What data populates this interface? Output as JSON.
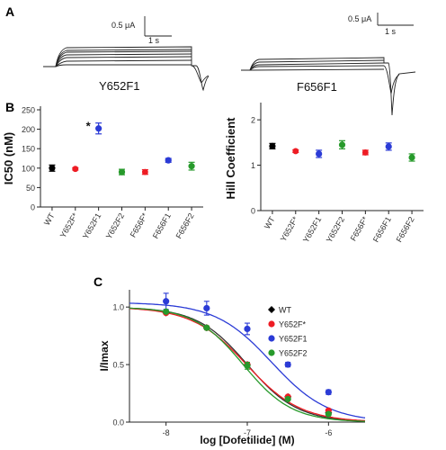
{
  "panels": {
    "A": {
      "letter": "A",
      "left": {
        "label": "Y652F1",
        "scale_current": "0.5 μA",
        "scale_time": "1 s"
      },
      "right": {
        "label": "F656F1",
        "scale_current": "0.5 μA",
        "scale_time": "1 s"
      }
    },
    "B": {
      "letter": "B"
    },
    "C": {
      "letter": "C"
    }
  },
  "colors": {
    "WT": "#000000",
    "Y652F*": "#ee1c24",
    "Y652F1": "#2b3bd6",
    "Y652F2": "#279a2b",
    "F656F*": "#ee1c24",
    "F656F1": "#2b3bd6",
    "F656F2": "#279a2b"
  },
  "chart_data": [
    {
      "type": "scatter",
      "panel": "B-left",
      "ylabel": "IC50 (nM)",
      "ylim": [
        0,
        250
      ],
      "yticks": [
        0,
        50,
        100,
        150,
        200,
        250
      ],
      "categories": [
        "WT",
        "Y652F*",
        "Y652F1",
        "Y652F2",
        "F656F*",
        "F656F1",
        "F656F2"
      ],
      "values": [
        100,
        98,
        202,
        90,
        90,
        120,
        105
      ],
      "errors": [
        8,
        3,
        14,
        7,
        6,
        5,
        10
      ],
      "annotations": [
        {
          "category": "Y652F1",
          "text": "*"
        }
      ]
    },
    {
      "type": "scatter",
      "panel": "B-right",
      "ylabel": "Hill Coefficient",
      "ylim": [
        0,
        2.3
      ],
      "yticks": [
        0,
        1,
        2
      ],
      "categories": [
        "WT",
        "Y652F*",
        "Y652F1",
        "Y652F2",
        "F656F*",
        "F656F1",
        "F656F2"
      ],
      "values": [
        1.42,
        1.31,
        1.25,
        1.45,
        1.28,
        1.41,
        1.17
      ],
      "errors": [
        0.06,
        0.03,
        0.08,
        0.09,
        0.05,
        0.08,
        0.08
      ]
    },
    {
      "type": "line",
      "panel": "C",
      "xlabel": "log [Dofetilide] (M)",
      "ylabel": "I/Imax",
      "xlim": [
        -8.45,
        -5.55
      ],
      "ylim": [
        0,
        1.15
      ],
      "xticks": [
        -8,
        -7,
        -6
      ],
      "xticklabels": [
        "-8",
        "-7",
        "-6"
      ],
      "yticks": [
        0,
        0.5,
        1
      ],
      "yticklabels": [
        "0.0",
        "0.5",
        "1.0"
      ],
      "legend_position": "top-right",
      "series": [
        {
          "name": "WT",
          "marker": "diamond",
          "x": [
            -8,
            -7.5,
            -7,
            -6.5,
            -6
          ],
          "y": [
            0.95,
            0.82,
            0.5,
            0.22,
            0.08
          ],
          "errors": [
            0,
            0,
            0,
            0,
            0
          ],
          "fit": {
            "ic50_log": -7.0,
            "hill": 1.4
          }
        },
        {
          "name": "Y652F*",
          "marker": "circle",
          "x": [
            -8,
            -7.5,
            -7,
            -6.5,
            -6
          ],
          "y": [
            0.95,
            0.82,
            0.5,
            0.22,
            0.1
          ],
          "errors": [
            0,
            0,
            0,
            0,
            0
          ],
          "fit": {
            "ic50_log": -7.01,
            "hill": 1.3
          }
        },
        {
          "name": "Y652F1",
          "marker": "circle",
          "x": [
            -8,
            -7.5,
            -7,
            -6.5,
            -6
          ],
          "y": [
            1.05,
            0.99,
            0.81,
            0.5,
            0.26
          ],
          "errors": [
            0.07,
            0.06,
            0.05,
            0.02,
            0.02
          ],
          "fit": {
            "ic50_log": -6.7,
            "hill": 1.25
          }
        },
        {
          "name": "Y652F2",
          "marker": "circle",
          "x": [
            -8,
            -7.5,
            -7,
            -6.5,
            -6
          ],
          "y": [
            0.96,
            0.82,
            0.49,
            0.2,
            0.07
          ],
          "errors": [
            0,
            0,
            0.03,
            0,
            0
          ],
          "fit": {
            "ic50_log": -7.05,
            "hill": 1.45
          }
        }
      ]
    }
  ]
}
